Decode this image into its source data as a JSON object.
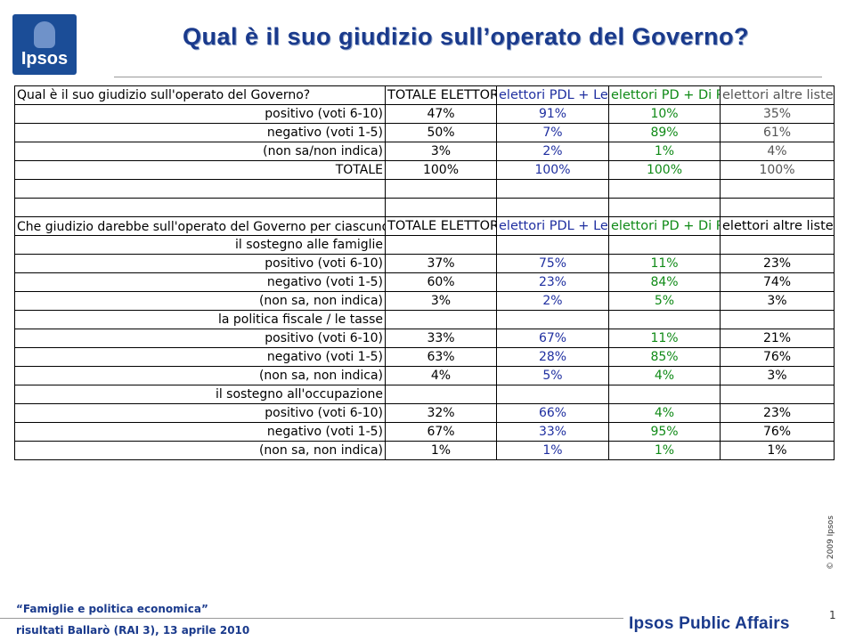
{
  "logo": {
    "text": "Ipsos"
  },
  "title": "Qual è il suo giudizio sull’operato del Governo?",
  "table1": {
    "question": "Qual è il suo giudizio sull'operato del Governo?",
    "headers": [
      "TOTALE ELETTORI",
      "elettori PDL + Lega",
      "elettori PD + Di Pietro",
      "elettori altre liste, astenuti, non indicano"
    ],
    "rows": [
      {
        "label": "positivo (voti 6-10)",
        "values": [
          "47%",
          "91%",
          "10%",
          "35%"
        ]
      },
      {
        "label": "negativo (voti 1-5)",
        "values": [
          "50%",
          "7%",
          "89%",
          "61%"
        ]
      },
      {
        "label": "(non sa/non indica)",
        "values": [
          "3%",
          "2%",
          "1%",
          "4%"
        ]
      },
      {
        "label": "TOTALE",
        "values": [
          "100%",
          "100%",
          "100%",
          "100%"
        ]
      }
    ]
  },
  "table2": {
    "question": "Che giudizio darebbe sull'operato del Governo per ciascuno di questi temi che le leggerò…",
    "headers": [
      "TOTALE ELETTORI",
      "elettori PDL + Lega",
      "elettori PD + Di Pietro",
      "elettori altre liste, astenuti, non indicano"
    ],
    "sections": [
      {
        "title": "il sostegno alle famiglie",
        "rows": [
          {
            "label": "positivo (voti 6-10)",
            "values": [
              "37%",
              "75%",
              "11%",
              "23%"
            ]
          },
          {
            "label": "negativo (voti 1-5)",
            "values": [
              "60%",
              "23%",
              "84%",
              "74%"
            ]
          },
          {
            "label": "(non sa, non indica)",
            "values": [
              "3%",
              "2%",
              "5%",
              "3%"
            ]
          }
        ]
      },
      {
        "title": "la politica fiscale / le tasse",
        "rows": [
          {
            "label": "positivo (voti 6-10)",
            "values": [
              "33%",
              "67%",
              "11%",
              "21%"
            ]
          },
          {
            "label": "negativo (voti 1-5)",
            "values": [
              "63%",
              "28%",
              "85%",
              "76%"
            ]
          },
          {
            "label": "(non sa, non indica)",
            "values": [
              "4%",
              "5%",
              "4%",
              "3%"
            ]
          }
        ]
      },
      {
        "title": "il sostegno all'occupazione",
        "rows": [
          {
            "label": "positivo (voti 6-10)",
            "values": [
              "32%",
              "66%",
              "4%",
              "23%"
            ]
          },
          {
            "label": "negativo (voti 1-5)",
            "values": [
              "67%",
              "33%",
              "95%",
              "76%"
            ]
          },
          {
            "label": "(non sa, non indica)",
            "values": [
              "1%",
              "1%",
              "1%",
              "1%"
            ]
          }
        ]
      }
    ]
  },
  "footer": {
    "subtitle": "“Famiglie e politica economica”",
    "source": "risultati Ballarò (RAI 3), 13 aprile 2010",
    "page": "1",
    "brand": "Ipsos Public Affairs",
    "copyright": "© 2009 Ipsos"
  },
  "colors": {
    "title": "#1a3a8c",
    "pdl": "#1f2fa0",
    "pd": "#0f8a16",
    "other": "#555555"
  }
}
